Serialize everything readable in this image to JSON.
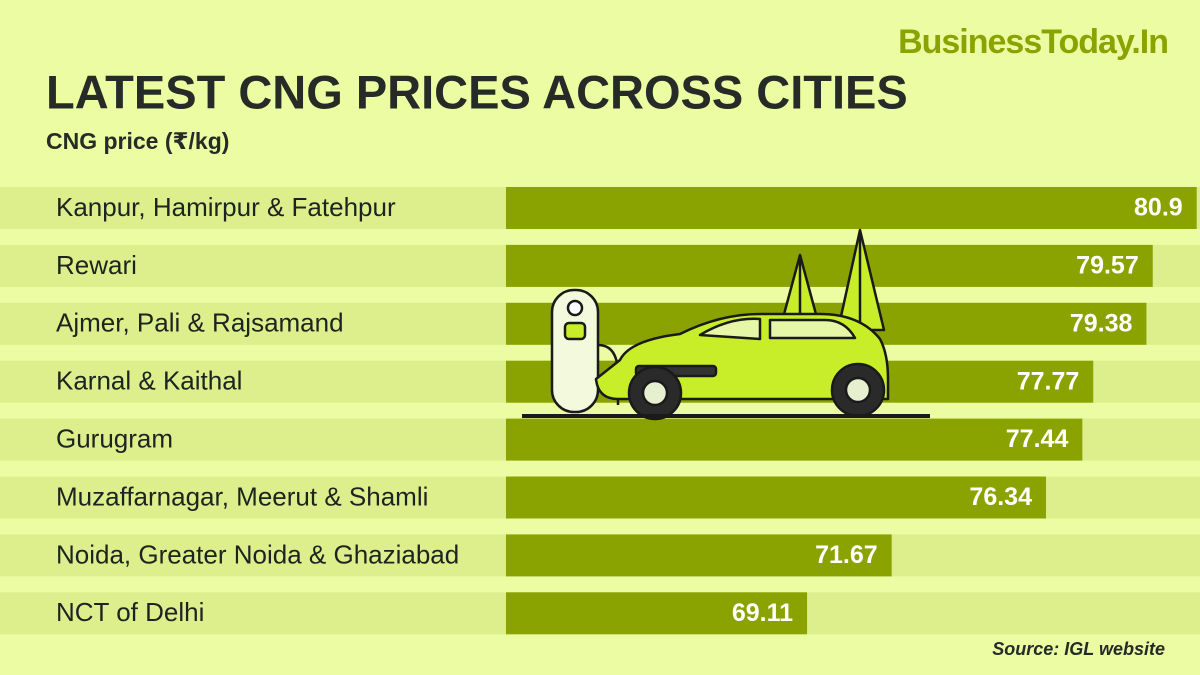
{
  "chart_data": {
    "type": "bar",
    "orientation": "horizontal",
    "brand": "BusinessToday.In",
    "title": "LATEST CNG PRICES ACROSS CITIES",
    "subtitle": "CNG price (₹/kg)",
    "source": "Source: IGL website",
    "categories": [
      "Kanpur, Hamirpur & Fatehpur",
      "Rewari",
      "Ajmer, Pali & Rajsamand",
      "Karnal & Kaithal",
      "Gurugram",
      "Muzaffarnagar, Meerut & Shamli",
      "Noida, Greater Noida & Ghaziabad",
      "NCT of Delhi"
    ],
    "values": [
      80.9,
      79.57,
      79.38,
      77.77,
      77.44,
      76.34,
      71.67,
      69.11
    ],
    "color": "#8ba300",
    "xlim": [
      60,
      81
    ]
  }
}
